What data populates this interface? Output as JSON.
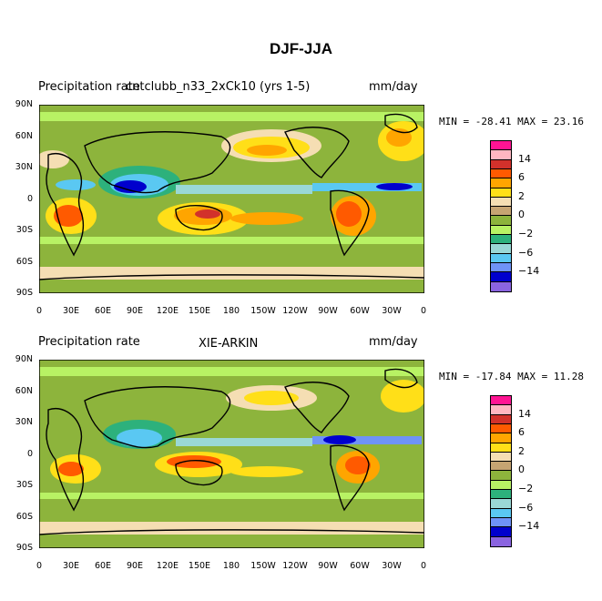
{
  "figure": {
    "title": "DJF-JJA"
  },
  "axes": {
    "lat_labels": [
      "90N",
      "60N",
      "30N",
      "0",
      "30S",
      "60S",
      "90S"
    ],
    "lon_labels": [
      "0",
      "30E",
      "60E",
      "90E",
      "120E",
      "150E",
      "180",
      "150W",
      "120W",
      "90W",
      "60W",
      "30W",
      "0"
    ]
  },
  "panels": [
    {
      "left_label": "Precipitation rate",
      "center_label": "cntclubb_n33_2xCk10 (yrs 1-5)",
      "right_label": "mm/day",
      "minmax": "MIN = -28.41 MAX =  23.16"
    },
    {
      "left_label": "Precipitation rate",
      "center_label": "XIE-ARKIN",
      "right_label": "mm/day",
      "minmax": "MIN = -17.84 MAX =  11.28"
    }
  ],
  "colorbar": {
    "colors": [
      "#ff1493",
      "#ffb6c1",
      "#d2312b",
      "#ff5a00",
      "#ffa500",
      "#ffdf18",
      "#f5deb3",
      "#c6a472",
      "#8db43c",
      "#b8f264",
      "#2db17c",
      "#9ad8d6",
      "#5ac8f2",
      "#6f93f7",
      "#0000cd",
      "#8a64e0"
    ],
    "labels": [
      "14",
      "6",
      "2",
      "0",
      "-2",
      "-6",
      "-14"
    ]
  }
}
